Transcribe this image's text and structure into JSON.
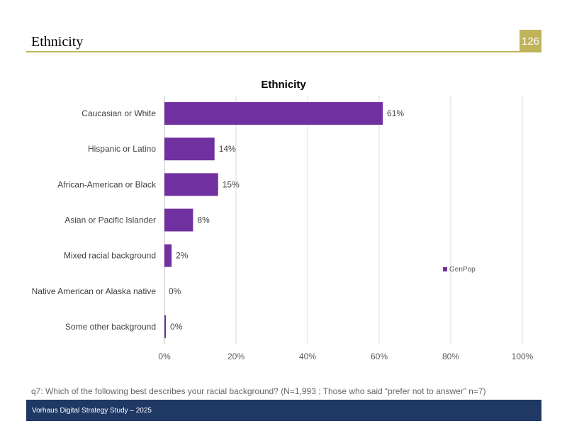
{
  "slide": {
    "title": "Ethnicity",
    "page_number": "126",
    "footnote": "q7: Which of the following best describes your racial background? (N=1,993 ; Those who said “prefer not to answer” n=7)",
    "footer": "Vorhaus Digital Strategy Study – 2025"
  },
  "colors": {
    "bar": "#7030a0",
    "accent": "#c0b45a",
    "footer_bg": "#1f3864"
  },
  "chart_data": {
    "type": "bar",
    "orientation": "horizontal",
    "title": "Ethnicity",
    "categories": [
      "Caucasian or White",
      "Hispanic or Latino",
      "African-American or Black",
      "Asian or Pacific Islander",
      "Mixed racial background",
      "Native American or Alaska native",
      "Some other background"
    ],
    "series": [
      {
        "name": "GenPop",
        "values": [
          61,
          14,
          15,
          8,
          2,
          0,
          0.4
        ]
      }
    ],
    "data_labels": [
      "61%",
      "14%",
      "15%",
      "8%",
      "2%",
      "0%",
      "0%"
    ],
    "xlim": [
      0,
      100
    ],
    "x_ticks": [
      0,
      20,
      40,
      60,
      80,
      100
    ],
    "x_tick_labels": [
      "0%",
      "20%",
      "40%",
      "60%",
      "80%",
      "100%"
    ],
    "grid": true,
    "legend_position": "right"
  }
}
